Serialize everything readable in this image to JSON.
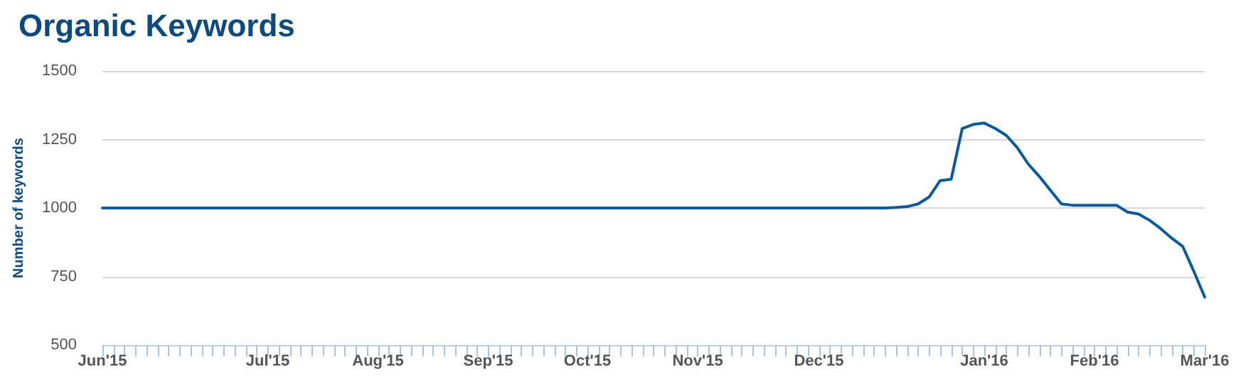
{
  "chart_data": {
    "type": "line",
    "title": "Organic Keywords",
    "ylabel": "Number of keywords",
    "categories": [
      "Jun'15",
      null,
      null,
      null,
      null,
      null,
      null,
      null,
      null,
      null,
      null,
      null,
      null,
      null,
      null,
      "Jul'15",
      null,
      null,
      null,
      null,
      null,
      null,
      null,
      null,
      null,
      "Aug'15",
      null,
      null,
      null,
      null,
      null,
      null,
      null,
      null,
      null,
      "Sep'15",
      null,
      null,
      null,
      null,
      null,
      null,
      null,
      null,
      "Oct'15",
      null,
      null,
      null,
      null,
      null,
      null,
      null,
      null,
      null,
      "Nov'15",
      null,
      null,
      null,
      null,
      null,
      null,
      null,
      null,
      null,
      null,
      "Dec'15",
      null,
      null,
      null,
      null,
      null,
      null,
      null,
      null,
      null,
      null,
      null,
      null,
      null,
      null,
      "Jan'16",
      null,
      null,
      null,
      null,
      null,
      null,
      null,
      null,
      null,
      "Feb'16",
      null,
      null,
      null,
      null,
      null,
      null,
      null,
      null,
      null,
      "Mar'16"
    ],
    "series": [
      {
        "color": "#0b5aa0",
        "values": [
          1000,
          1000,
          1000,
          1000,
          1000,
          1000,
          1000,
          1000,
          1000,
          1000,
          1000,
          1000,
          1000,
          1000,
          1000,
          1000,
          1000,
          1000,
          1000,
          1000,
          1000,
          1000,
          1000,
          1000,
          1000,
          1000,
          1000,
          1000,
          1000,
          1000,
          1000,
          1000,
          1000,
          1000,
          1000,
          1000,
          1000,
          1000,
          1000,
          1000,
          1000,
          1000,
          1000,
          1000,
          1000,
          1000,
          1000,
          1000,
          1000,
          1000,
          1000,
          1000,
          1000,
          1000,
          1000,
          1000,
          1000,
          1000,
          1000,
          1000,
          1000,
          1000,
          1000,
          1000,
          1000,
          1000,
          1000,
          1000,
          1000,
          1000,
          1000,
          1000,
          1002,
          1005,
          1015,
          1040,
          1100,
          1105,
          1290,
          1305,
          1310,
          1290,
          1265,
          1220,
          1160,
          1115,
          1065,
          1015,
          1010,
          1010,
          1010,
          1010,
          1010,
          985,
          978,
          955,
          925,
          890,
          860,
          770,
          675
        ]
      }
    ],
    "ylim": [
      500,
      1500
    ],
    "yticks": [
      500,
      750,
      1000,
      1250,
      1500
    ],
    "grid": "y",
    "marker": "none",
    "line_style": "solid"
  }
}
